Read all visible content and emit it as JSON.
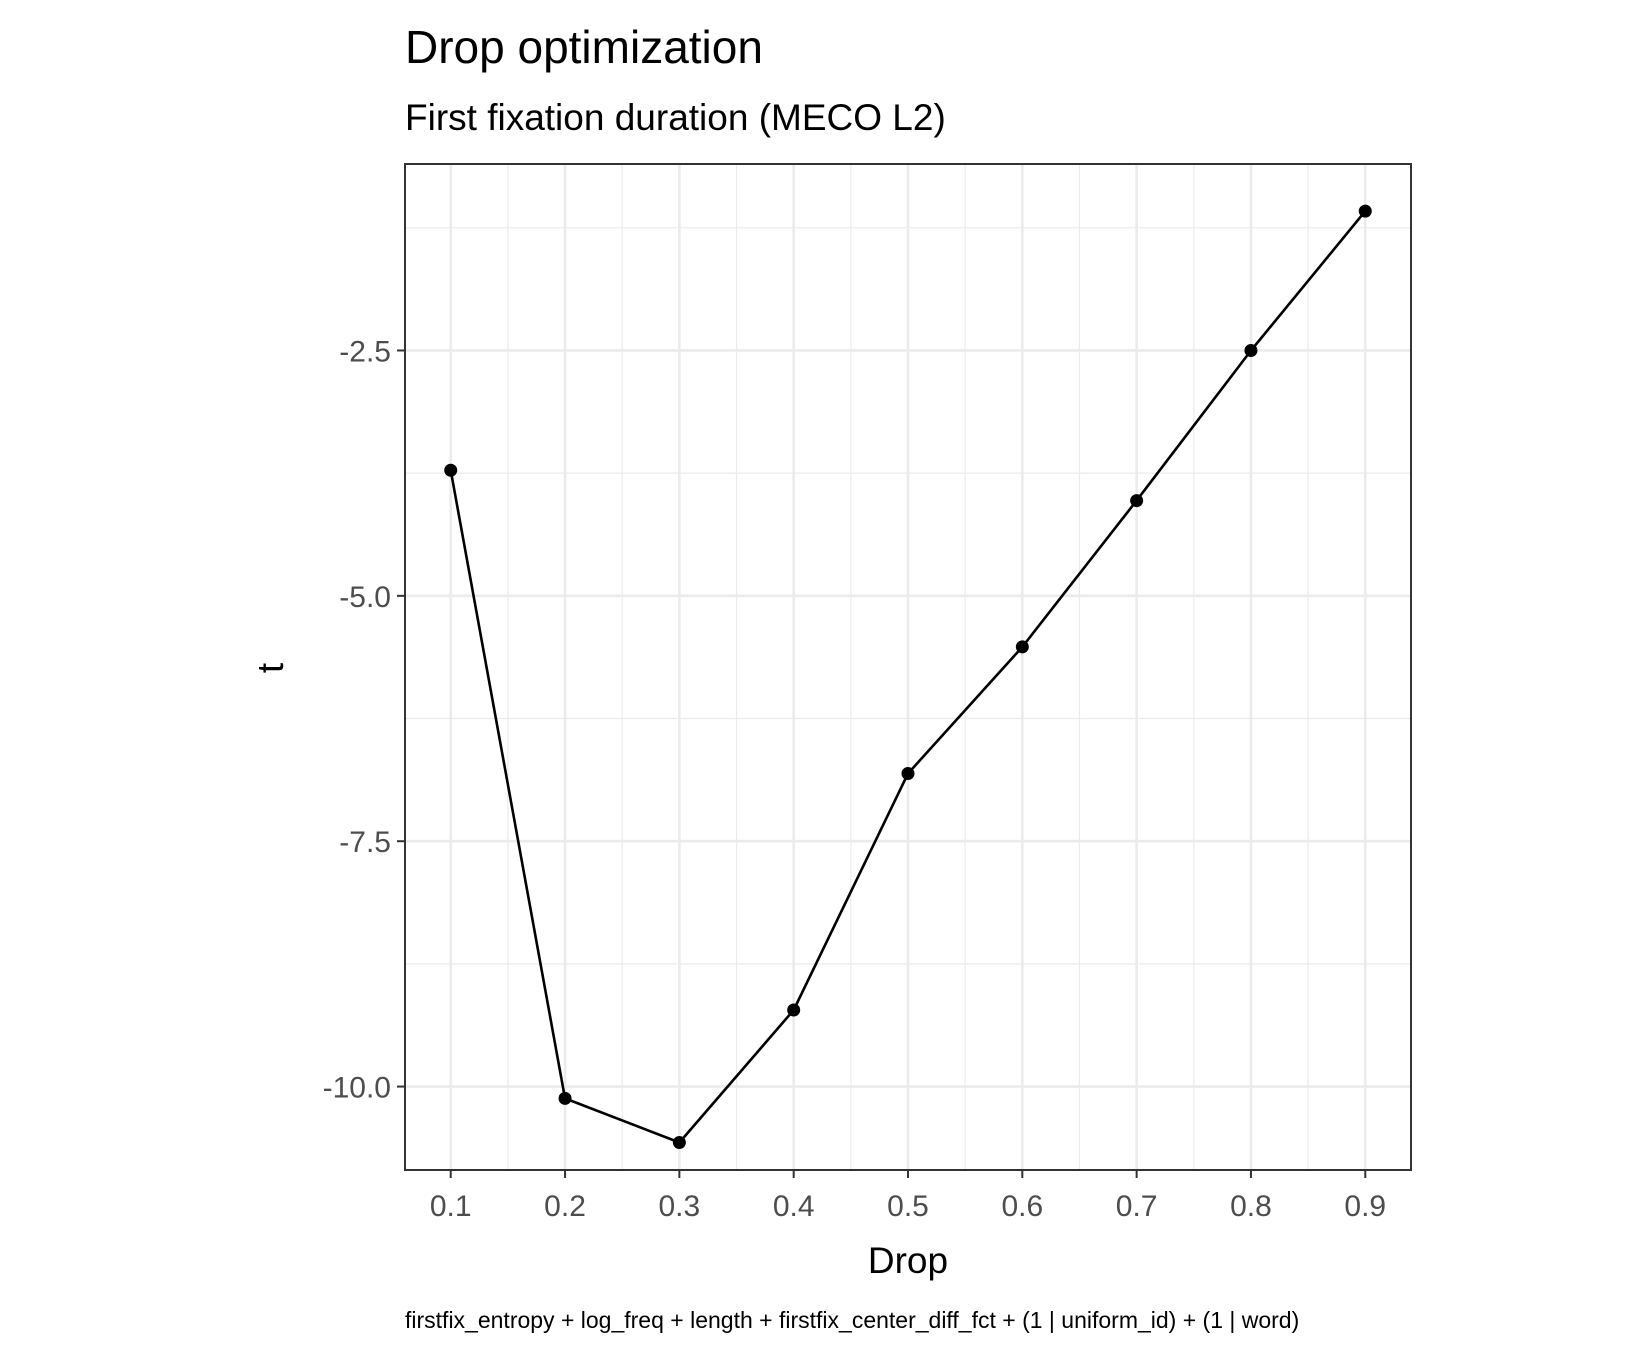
{
  "chart_data": {
    "type": "line",
    "title": "Drop optimization",
    "subtitle": "First fixation duration (MECO L2)",
    "xlabel": "Drop",
    "ylabel": "t",
    "caption": "firstfix_entropy + log_freq + length + firstfix_center_diff_fct + (1 | uniform_id) + (1 | word)",
    "x": [
      0.1,
      0.2,
      0.3,
      0.4,
      0.5,
      0.6,
      0.7,
      0.8,
      0.9
    ],
    "y": [
      -3.72,
      -10.12,
      -10.57,
      -9.22,
      -6.81,
      -5.52,
      -4.03,
      -2.5,
      -1.08
    ],
    "xlim": [
      0.06,
      0.94
    ],
    "ylim": [
      -10.85,
      -0.6
    ],
    "x_ticks": [
      0.1,
      0.2,
      0.3,
      0.4,
      0.5,
      0.6,
      0.7,
      0.8,
      0.9
    ],
    "x_tick_labels": [
      "0.1",
      "0.2",
      "0.3",
      "0.4",
      "0.5",
      "0.6",
      "0.7",
      "0.8",
      "0.9"
    ],
    "y_ticks": [
      -2.5,
      -5.0,
      -7.5,
      -10.0
    ],
    "y_tick_labels": [
      "-2.5",
      "-5.0",
      "-7.5",
      "-10.0"
    ],
    "grid": true,
    "colors": {
      "line": "#000000",
      "point": "#000000",
      "grid": "#ebebeb",
      "panel_border": "#333333"
    }
  }
}
